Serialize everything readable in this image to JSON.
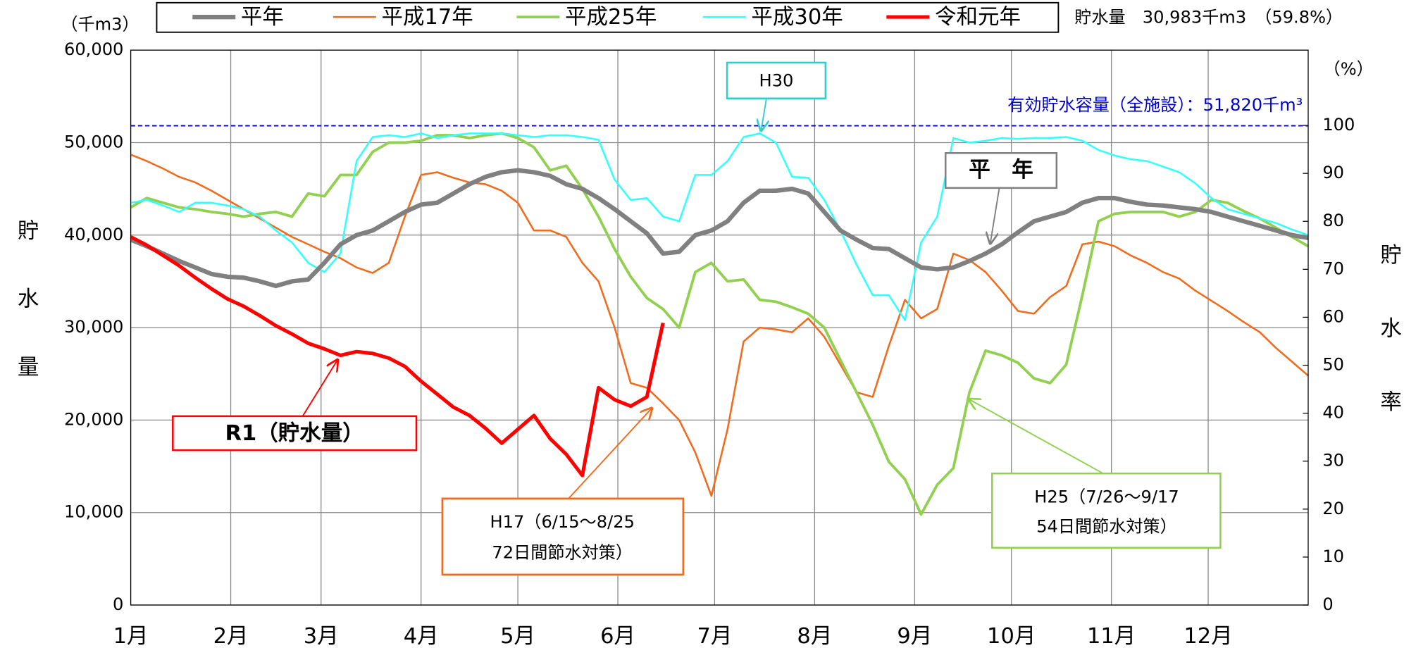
{
  "chart_data": {
    "type": "line",
    "y_label": "（千m3）",
    "y_title": "貯水量",
    "y2_label": "（%）",
    "y2_title": "貯水率",
    "status": "貯水量　30,983千m3　（59.8%）",
    "xlim": [
      0,
      365
    ],
    "xticks": [
      {
        "value": 0,
        "label": "1月"
      },
      {
        "value": 31,
        "label": "2月"
      },
      {
        "value": 59,
        "label": "3月"
      },
      {
        "value": 90,
        "label": "4月"
      },
      {
        "value": 120,
        "label": "5月"
      },
      {
        "value": 151,
        "label": "6月"
      },
      {
        "value": 181,
        "label": "7月"
      },
      {
        "value": 212,
        "label": "8月"
      },
      {
        "value": 243,
        "label": "9月"
      },
      {
        "value": 273,
        "label": "10月"
      },
      {
        "value": 304,
        "label": "11月"
      },
      {
        "value": 334,
        "label": "12月"
      }
    ],
    "ylim": [
      0,
      60000
    ],
    "yticks": [
      0,
      {
        "value": 10000,
        "label": "10,000"
      },
      {
        "value": 20000,
        "label": "20,000"
      },
      {
        "value": 30000,
        "label": "30,000"
      },
      {
        "value": 40000,
        "label": "40,000"
      },
      {
        "value": 50000,
        "label": "50,000"
      },
      {
        "value": 60000,
        "label": "60,000"
      }
    ],
    "y2lim": [
      0,
      115.7
    ],
    "y2ticks": [
      0,
      10,
      20,
      30,
      40,
      50,
      60,
      70,
      80,
      90,
      100
    ],
    "grid": true,
    "capacity_value": 51820,
    "annotations": {
      "h30": "H30",
      "capacity": "有効貯水容量（全施設）：51,820千m³",
      "normal": "平　年",
      "r1": "R1（貯水量）",
      "h17": [
        "H17（6/15〜8/25",
        "72日間節水対策）"
      ],
      "h25": [
        "H25（7/26〜9/17",
        "54日間節水対策）"
      ]
    },
    "x": [
      0,
      5,
      10,
      15,
      20,
      25,
      30,
      35,
      40,
      45,
      50,
      55,
      60,
      65,
      70,
      75,
      80,
      85,
      90,
      95,
      100,
      105,
      110,
      115,
      120,
      125,
      130,
      135,
      140,
      145,
      150,
      155,
      160,
      165,
      170,
      175,
      180,
      185,
      190,
      195,
      200,
      205,
      210,
      215,
      220,
      225,
      230,
      235,
      240,
      245,
      250,
      255,
      260,
      265,
      270,
      275,
      280,
      285,
      290,
      295,
      300,
      305,
      310,
      315,
      320,
      325,
      330,
      335,
      340,
      345,
      350,
      355,
      360,
      365
    ],
    "series": [
      {
        "name": "平年",
        "color": "#808080",
        "values": [
          39500,
          38800,
          38000,
          37200,
          36500,
          35800,
          35500,
          35400,
          35000,
          34500,
          35000,
          35200,
          37000,
          39000,
          40000,
          40500,
          41500,
          42500,
          43300,
          43500,
          44500,
          45500,
          46300,
          46800,
          47000,
          46800,
          46400,
          45500,
          45000,
          44000,
          42800,
          41500,
          40200,
          38000,
          38200,
          40000,
          40500,
          41500,
          43500,
          44800,
          44800,
          45000,
          44500,
          42500,
          40500,
          39500,
          38600,
          38500,
          37500,
          36500,
          36300,
          36500,
          37200,
          38000,
          39000,
          40300,
          41500,
          42000,
          42500,
          43500,
          44000,
          44000,
          43600,
          43300,
          43200,
          43000,
          42800,
          42500,
          42000,
          41500,
          41000,
          40500,
          40000,
          39700
        ]
      },
      {
        "name": "平成17年",
        "color": "#f26a1b",
        "values": [
          48700,
          48000,
          47200,
          46300,
          45700,
          44800,
          43800,
          42800,
          41800,
          40800,
          39800,
          39000,
          38200,
          37500,
          36500,
          35900,
          37000,
          42000,
          46500,
          46800,
          46200,
          45700,
          45500,
          44800,
          43500,
          40500,
          40500,
          39800,
          37000,
          35000,
          30000,
          24000,
          23500,
          21800,
          20000,
          16500,
          11800,
          19000,
          28500,
          30000,
          29800,
          29500,
          31000,
          29000,
          26000,
          23000,
          22500,
          28000,
          33000,
          31000,
          32000,
          38000,
          37300,
          36000,
          34000,
          31800,
          31500,
          33300,
          34500,
          39000,
          39300,
          38800,
          37800,
          37000,
          36000,
          35300,
          34000,
          32900,
          31800,
          30600,
          29500,
          27800,
          26300,
          24800
        ]
      },
      {
        "name": "平成25年",
        "color": "#92d050",
        "values": [
          43000,
          44000,
          43500,
          43000,
          42800,
          42500,
          42300,
          42000,
          42300,
          42500,
          42000,
          44500,
          44200,
          46500,
          46500,
          49000,
          50000,
          50000,
          50200,
          50800,
          50800,
          50500,
          50800,
          51000,
          50500,
          49500,
          47000,
          47500,
          45000,
          42000,
          38500,
          35500,
          33200,
          32000,
          30000,
          36000,
          37000,
          35000,
          35200,
          33000,
          32800,
          32200,
          31500,
          30000,
          26500,
          23000,
          19500,
          15500,
          13600,
          9800,
          13000,
          14800,
          23000,
          27500,
          27000,
          26200,
          24500,
          24000,
          26000,
          33500,
          41500,
          42300,
          42500,
          42500,
          42500,
          42000,
          42500,
          43800,
          43500,
          42600,
          41800,
          40800,
          39800,
          38800
        ]
      },
      {
        "name": "平成30年",
        "color": "#33ffff",
        "values": [
          43500,
          43800,
          43200,
          42500,
          43500,
          43500,
          43200,
          42800,
          42000,
          40500,
          39200,
          37000,
          36000,
          38000,
          48000,
          50600,
          50800,
          50600,
          51000,
          50500,
          50800,
          51000,
          51000,
          51000,
          50800,
          50600,
          50800,
          50800,
          50600,
          50300,
          46000,
          43800,
          44000,
          42000,
          41500,
          46500,
          46500,
          48000,
          50600,
          51000,
          50000,
          46300,
          46200,
          43800,
          40500,
          36800,
          33500,
          33500,
          30800,
          39200,
          42000,
          50500,
          50000,
          50200,
          50500,
          50400,
          50500,
          50500,
          50600,
          50200,
          49200,
          48600,
          48200,
          48000,
          47400,
          46800,
          45600,
          44000,
          42800,
          42300,
          41800,
          41300,
          40600,
          40000
        ]
      },
      {
        "name": "令和元年",
        "color": "#ff0000",
        "values": [
          39800,
          38900,
          37800,
          36700,
          35400,
          34200,
          33100,
          32300,
          31300,
          30200,
          29300,
          28300,
          27700,
          27000,
          27400,
          27200,
          26700,
          25800,
          24200,
          22800,
          21400,
          20500,
          19100,
          17500,
          19000,
          20500,
          18000,
          16300,
          14000,
          23500,
          22200,
          21500,
          22500,
          30500,
          null,
          null,
          null,
          null,
          null,
          null,
          null,
          null,
          null,
          null,
          null,
          null,
          null,
          null,
          null,
          null,
          null,
          null,
          null,
          null,
          null,
          null,
          null,
          null,
          null,
          null,
          null,
          null,
          null,
          null,
          null,
          null,
          null,
          null,
          null,
          null,
          null,
          null,
          null,
          null
        ]
      }
    ]
  }
}
